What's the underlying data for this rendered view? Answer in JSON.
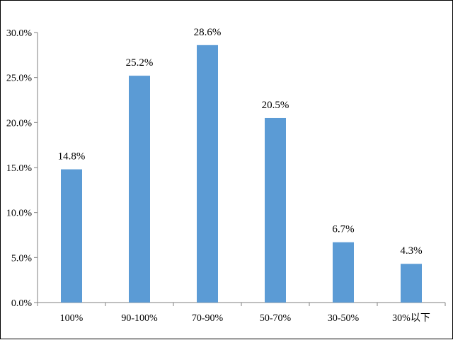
{
  "chart_data": {
    "type": "bar",
    "categories": [
      "100%",
      "90-100%",
      "70-90%",
      "50-70%",
      "30-50%",
      "30%以下"
    ],
    "values": [
      14.8,
      25.2,
      28.6,
      20.5,
      6.7,
      4.3
    ],
    "data_labels": [
      "14.8%",
      "25.2%",
      "28.6%",
      "20.5%",
      "6.7%",
      "4.3%"
    ],
    "y_ticks": [
      0,
      5,
      10,
      15,
      20,
      25,
      30
    ],
    "y_tick_labels": [
      "0.0%",
      "5.0%",
      "10.0%",
      "15.0%",
      "20.0%",
      "25.0%",
      "30.0%"
    ],
    "ylim": [
      0,
      30
    ],
    "title": "",
    "xlabel": "",
    "ylabel": "",
    "grid": false,
    "legend": "none",
    "bar_color": "#5b9bd5",
    "axis_color": "#7f7f7f"
  }
}
